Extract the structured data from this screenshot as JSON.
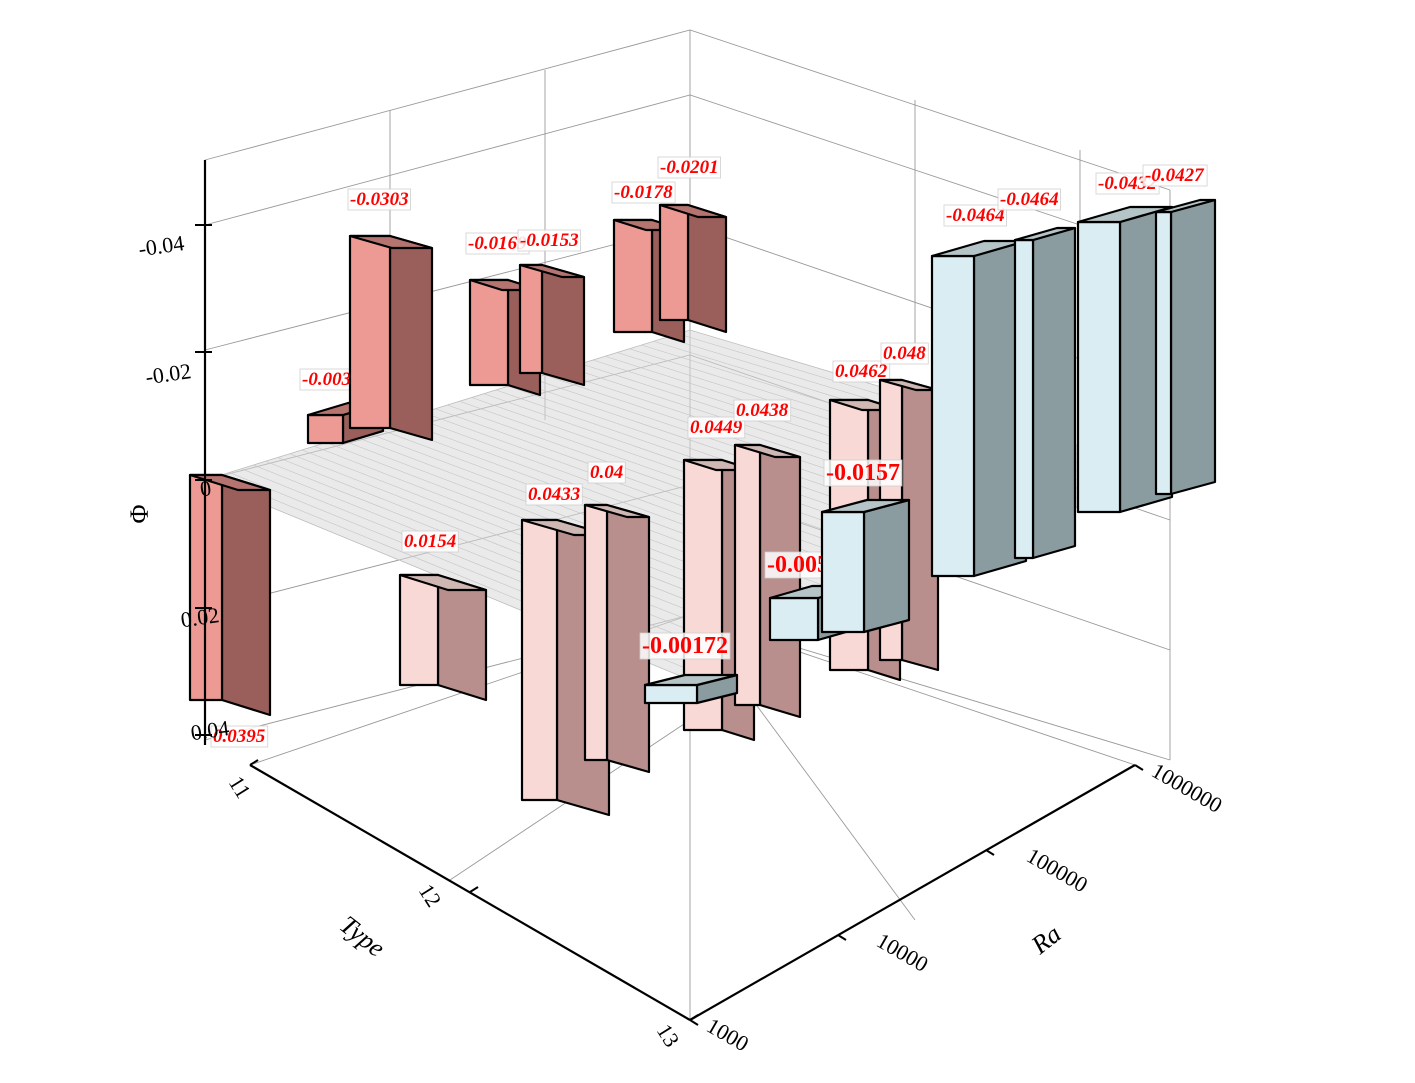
{
  "chart_data": {
    "type": "bar3d",
    "z_axis": {
      "label": "Φ",
      "reversed": true,
      "ticks": [
        "-0.04",
        "-0.02",
        "0",
        "0.02",
        "0.04"
      ]
    },
    "x_axis": {
      "label": "Type",
      "ticks": [
        "11",
        "12",
        "13"
      ]
    },
    "y_axis": {
      "label": "Ra",
      "scale": "log",
      "ticks": [
        "1000",
        "10000",
        "100000",
        "1000000"
      ]
    },
    "colors": {
      "positive_light": "#f9d9d6",
      "positive_dark": "#b88f8c",
      "negative_red_light": "#ee9a94",
      "negative_red_dark": "#9a5f5a",
      "blue_light": "#d9edf2",
      "blue_dark": "#8a9c9f",
      "label": "#ff0000"
    },
    "bars": [
      {
        "label": "0.0395"
      },
      {
        "label": "-0.00304"
      },
      {
        "label": "-0.0303"
      },
      {
        "label": "0.0154"
      },
      {
        "label": "-0.0169"
      },
      {
        "label": "-0.0153"
      },
      {
        "label": "0.0433"
      },
      {
        "label": "0.04"
      },
      {
        "label": "-0.0178"
      },
      {
        "label": "-0.0201"
      },
      {
        "label": "0.0449"
      },
      {
        "label": "0.0438"
      },
      {
        "label": "-0.00172"
      },
      {
        "label": "0.0462"
      },
      {
        "label": "0.048"
      },
      {
        "label": "-0.00531"
      },
      {
        "label": "-0.0157"
      },
      {
        "label": "-0.0464"
      },
      {
        "label": "-0.0464"
      },
      {
        "label": "-0.0432"
      },
      {
        "label": "-0.0427"
      }
    ]
  }
}
